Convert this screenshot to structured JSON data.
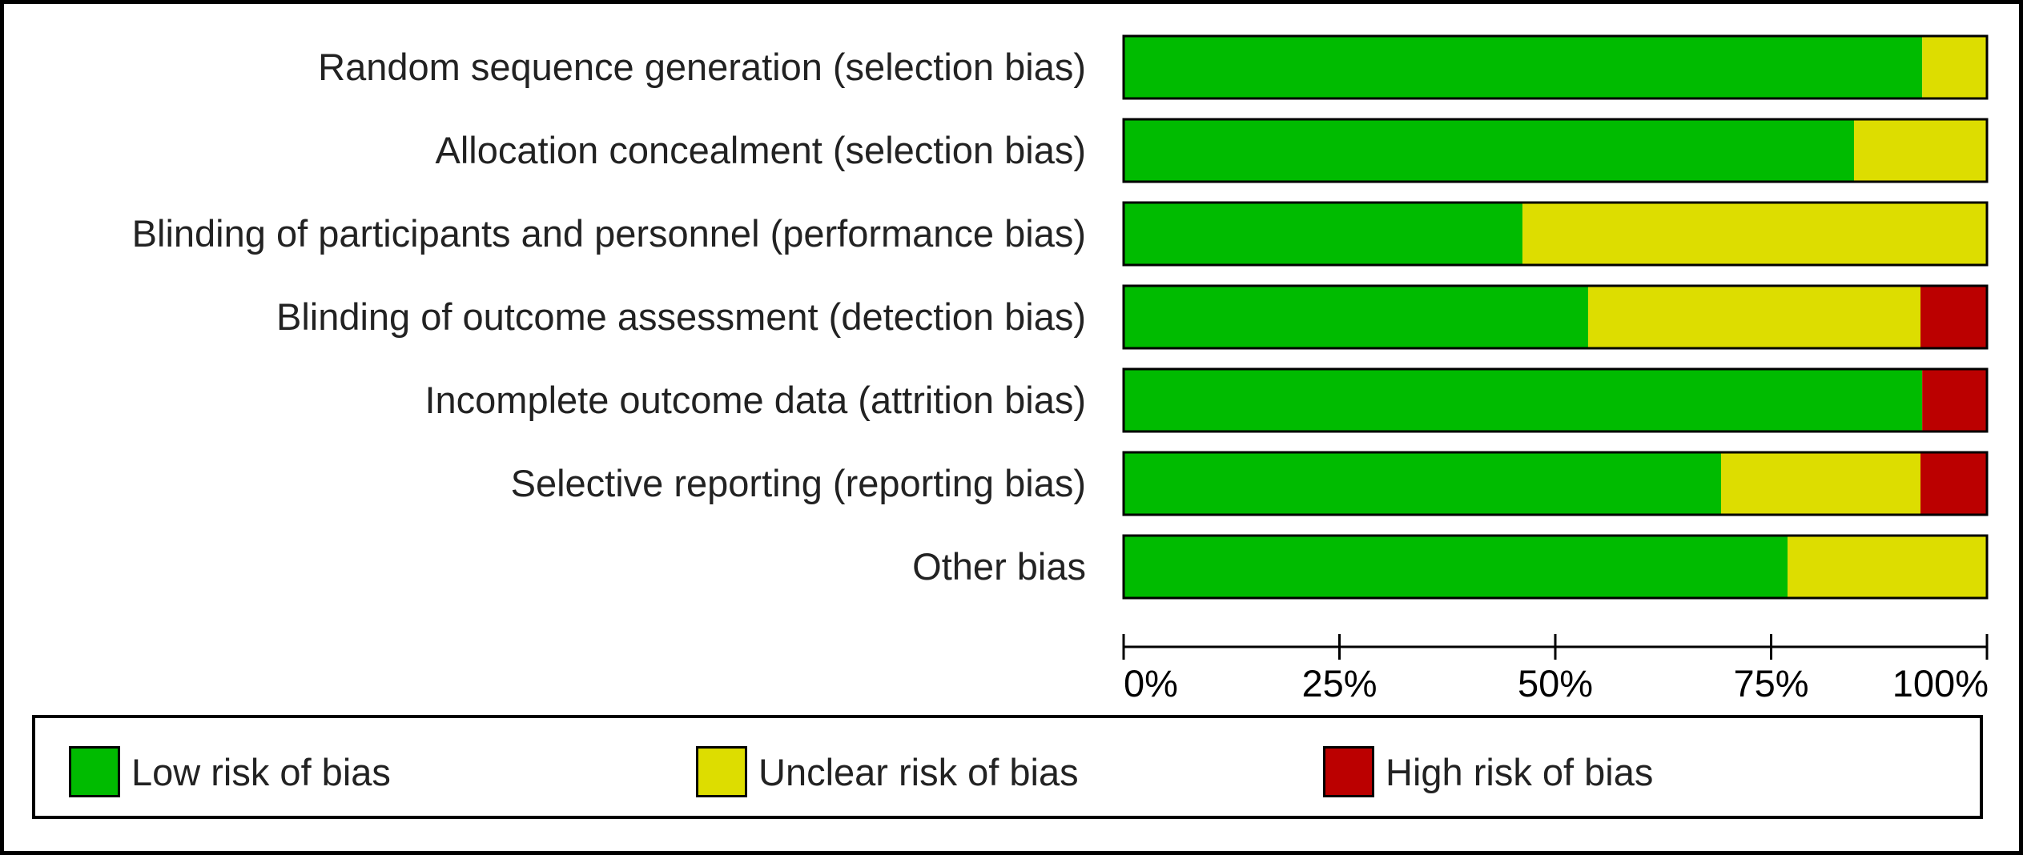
{
  "chart_data": {
    "type": "bar",
    "orientation": "horizontal",
    "stacked": true,
    "categories": [
      "Random sequence generation (selection bias)",
      "Allocation concealment (selection bias)",
      "Blinding of participants and personnel (performance bias)",
      "Blinding of outcome assessment (detection bias)",
      "Incomplete outcome data (attrition bias)",
      "Selective reporting (reporting bias)",
      "Other bias"
    ],
    "series": [
      {
        "name": "Low risk of bias",
        "color": "#00bb00",
        "values": [
          92.5,
          84.6,
          46.2,
          53.8,
          92.5,
          69.2,
          76.9
        ]
      },
      {
        "name": "Unclear risk of bias",
        "color": "#dddd00",
        "values": [
          7.5,
          15.4,
          53.8,
          38.5,
          0,
          23.1,
          23.1
        ]
      },
      {
        "name": "High risk of bias",
        "color": "#bb0000",
        "values": [
          0,
          0,
          0,
          7.7,
          7.5,
          7.7,
          0
        ]
      }
    ],
    "xticks": [
      "0%",
      "25%",
      "50%",
      "75%",
      "100%"
    ],
    "xlim": [
      0,
      100
    ],
    "legend_position": "bottom",
    "grid": false
  },
  "legend": {
    "items": [
      {
        "label": "Low risk of bias",
        "color": "#00bb00"
      },
      {
        "label": "Unclear risk of bias",
        "color": "#dddd00"
      },
      {
        "label": "High risk of bias",
        "color": "#bb0000"
      }
    ]
  }
}
